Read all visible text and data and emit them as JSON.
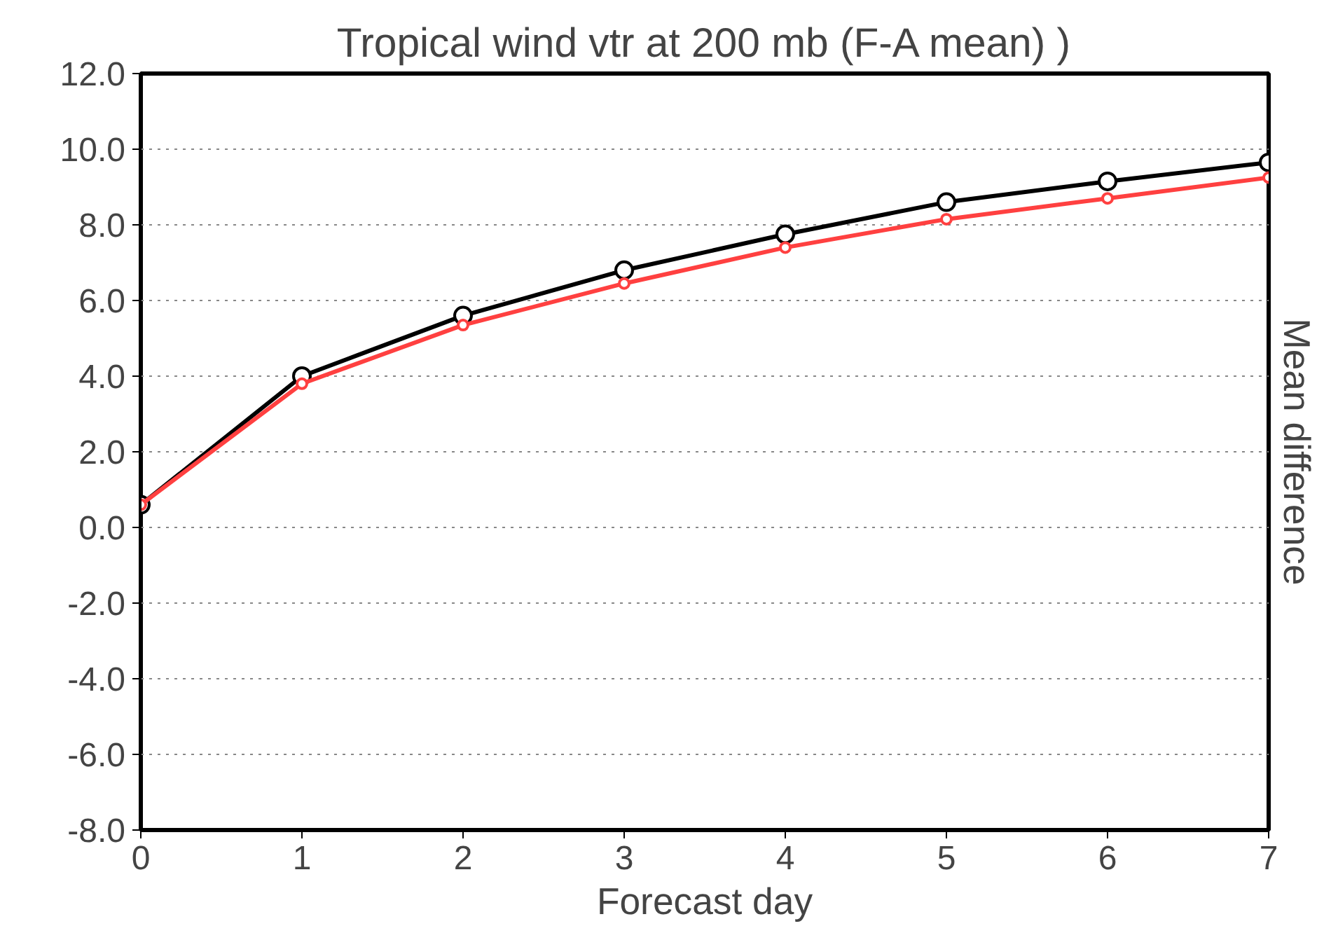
{
  "chart_data": {
    "type": "line",
    "title": "Tropical wind vtr at 200 mb (F-A mean) )",
    "xlabel": "Forecast day",
    "ylabel": "Mean difference",
    "x": [
      0,
      1,
      2,
      3,
      4,
      5,
      6,
      7
    ],
    "series": [
      {
        "color": "#000000",
        "values": [
          0.6,
          4.0,
          5.6,
          6.8,
          7.75,
          8.6,
          9.15,
          9.65
        ]
      },
      {
        "color": "#ff4040",
        "values": [
          0.6,
          3.8,
          5.35,
          6.45,
          7.4,
          8.15,
          8.7,
          9.25
        ]
      }
    ],
    "xlim": [
      0,
      7
    ],
    "xticks": [
      0,
      1,
      2,
      3,
      4,
      5,
      6,
      7
    ],
    "ylim": [
      -8,
      12
    ],
    "yticks": [
      {
        "value": -8,
        "label": "-8.0"
      },
      {
        "value": -6,
        "label": "-6.0"
      },
      {
        "value": -4,
        "label": "-4.0"
      },
      {
        "value": -2,
        "label": "-2.0"
      },
      {
        "value": 0,
        "label": "0.0"
      },
      {
        "value": 2,
        "label": "2.0"
      },
      {
        "value": 4,
        "label": "4.0"
      },
      {
        "value": 6,
        "label": "6.0"
      },
      {
        "value": 8,
        "label": "8.0"
      },
      {
        "value": 10,
        "label": "10.0"
      },
      {
        "value": 12,
        "label": "12.0"
      }
    ],
    "grid": "y",
    "marker": "circle",
    "line_style": "solid"
  }
}
